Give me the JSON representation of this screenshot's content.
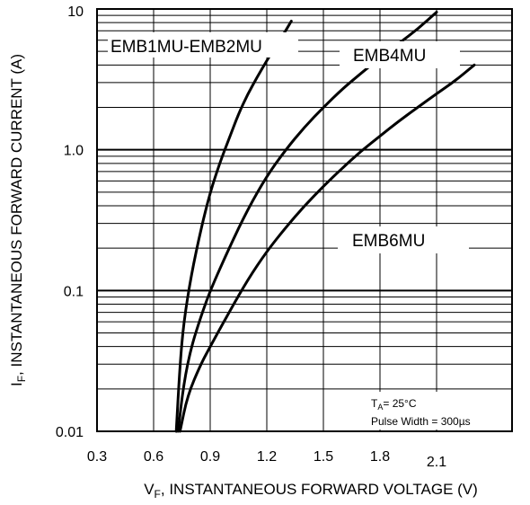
{
  "chart_data": {
    "type": "line",
    "title": "",
    "xlabel": "V₉, INSTANTANEOUS FORWARD VOLTAGE (V)",
    "xlabel_main": "V",
    "xlabel_sub": "F",
    "xlabel_rest": ", INSTANTANEOUS FORWARD VOLTAGE (V)",
    "ylabel_main": "I",
    "ylabel_sub": "F",
    "ylabel_rest": ", INSTANTANEOUS FORWARD CURRENT (A)",
    "xlim": [
      0.3,
      2.5
    ],
    "ylim": [
      0.01,
      10
    ],
    "y_scale": "log",
    "grid": true,
    "x_ticks": [
      "0.3",
      "0.6",
      "0.9",
      "1.2",
      "1.5",
      "1.8",
      "2.1"
    ],
    "y_ticks": [
      "0.01",
      "0.1",
      "1.0",
      "10"
    ],
    "series": [
      {
        "name": "EMB1MU-EMB2MU",
        "x": [
          0.72,
          0.74,
          0.76,
          0.8,
          0.85,
          0.9,
          0.95,
          1.0,
          1.05,
          1.1,
          1.15,
          1.2,
          1.25,
          1.3,
          1.33
        ],
        "y": [
          0.01,
          0.03,
          0.06,
          0.13,
          0.27,
          0.5,
          0.8,
          1.2,
          1.8,
          2.5,
          3.3,
          4.3,
          5.5,
          7.0,
          8.2
        ]
      },
      {
        "name": "EMB4MU",
        "x": [
          0.73,
          0.76,
          0.8,
          0.85,
          0.9,
          1.0,
          1.1,
          1.2,
          1.3,
          1.4,
          1.5,
          1.6,
          1.7,
          1.8,
          1.9,
          2.0,
          2.1
        ],
        "y": [
          0.01,
          0.022,
          0.04,
          0.065,
          0.1,
          0.2,
          0.38,
          0.65,
          1.0,
          1.45,
          2.0,
          2.7,
          3.5,
          4.5,
          5.7,
          7.2,
          9.5
        ]
      },
      {
        "name": "EMB6MU",
        "x": [
          0.74,
          0.78,
          0.85,
          0.9,
          1.0,
          1.1,
          1.2,
          1.3,
          1.4,
          1.5,
          1.6,
          1.7,
          1.8,
          1.9,
          2.0,
          2.1,
          2.2,
          2.3
        ],
        "y": [
          0.01,
          0.018,
          0.03,
          0.04,
          0.07,
          0.12,
          0.19,
          0.28,
          0.4,
          0.55,
          0.74,
          0.98,
          1.25,
          1.6,
          2.0,
          2.5,
          3.1,
          4.0
        ]
      }
    ],
    "annotations": {
      "temp_main": "T",
      "temp_sub": "A",
      "temp_rest": "= 25°C",
      "pulse": "Pulse Width = 300µs"
    }
  }
}
